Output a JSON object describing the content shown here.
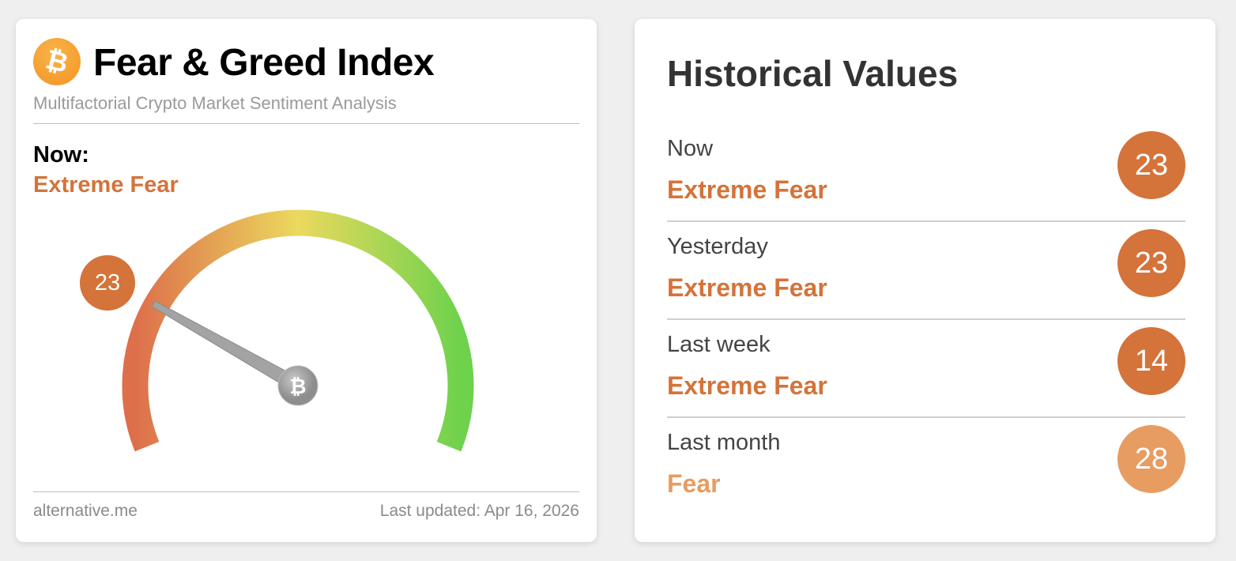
{
  "widget": {
    "logo_icon": "bitcoin-icon",
    "title": "Fear & Greed Index",
    "subtitle": "Multifactorial Crypto Market Sentiment Analysis",
    "now_label": "Now:",
    "now_classification": "Extreme Fear",
    "value": 23,
    "value_text": "23",
    "gauge_range": [
      0,
      100
    ],
    "footer_source": "alternative.me",
    "footer_updated": "Last updated: Apr 16, 2026"
  },
  "historical": {
    "title": "Historical Values",
    "rows": [
      {
        "label": "Now",
        "classification": "Extreme Fear",
        "value": "23",
        "color": "#d4733a"
      },
      {
        "label": "Yesterday",
        "classification": "Extreme Fear",
        "value": "23",
        "color": "#d4733a"
      },
      {
        "label": "Last week",
        "classification": "Extreme Fear",
        "value": "14",
        "color": "#d4733a"
      },
      {
        "label": "Last month",
        "classification": "Fear",
        "value": "28",
        "color": "#e79c62"
      }
    ]
  },
  "colors": {
    "extreme_fear": "#d4733a",
    "fear": "#e79c62",
    "gauge_start": "#dd6f4b",
    "gauge_mid": "#ebd95e",
    "gauge_end": "#6ed24c"
  }
}
